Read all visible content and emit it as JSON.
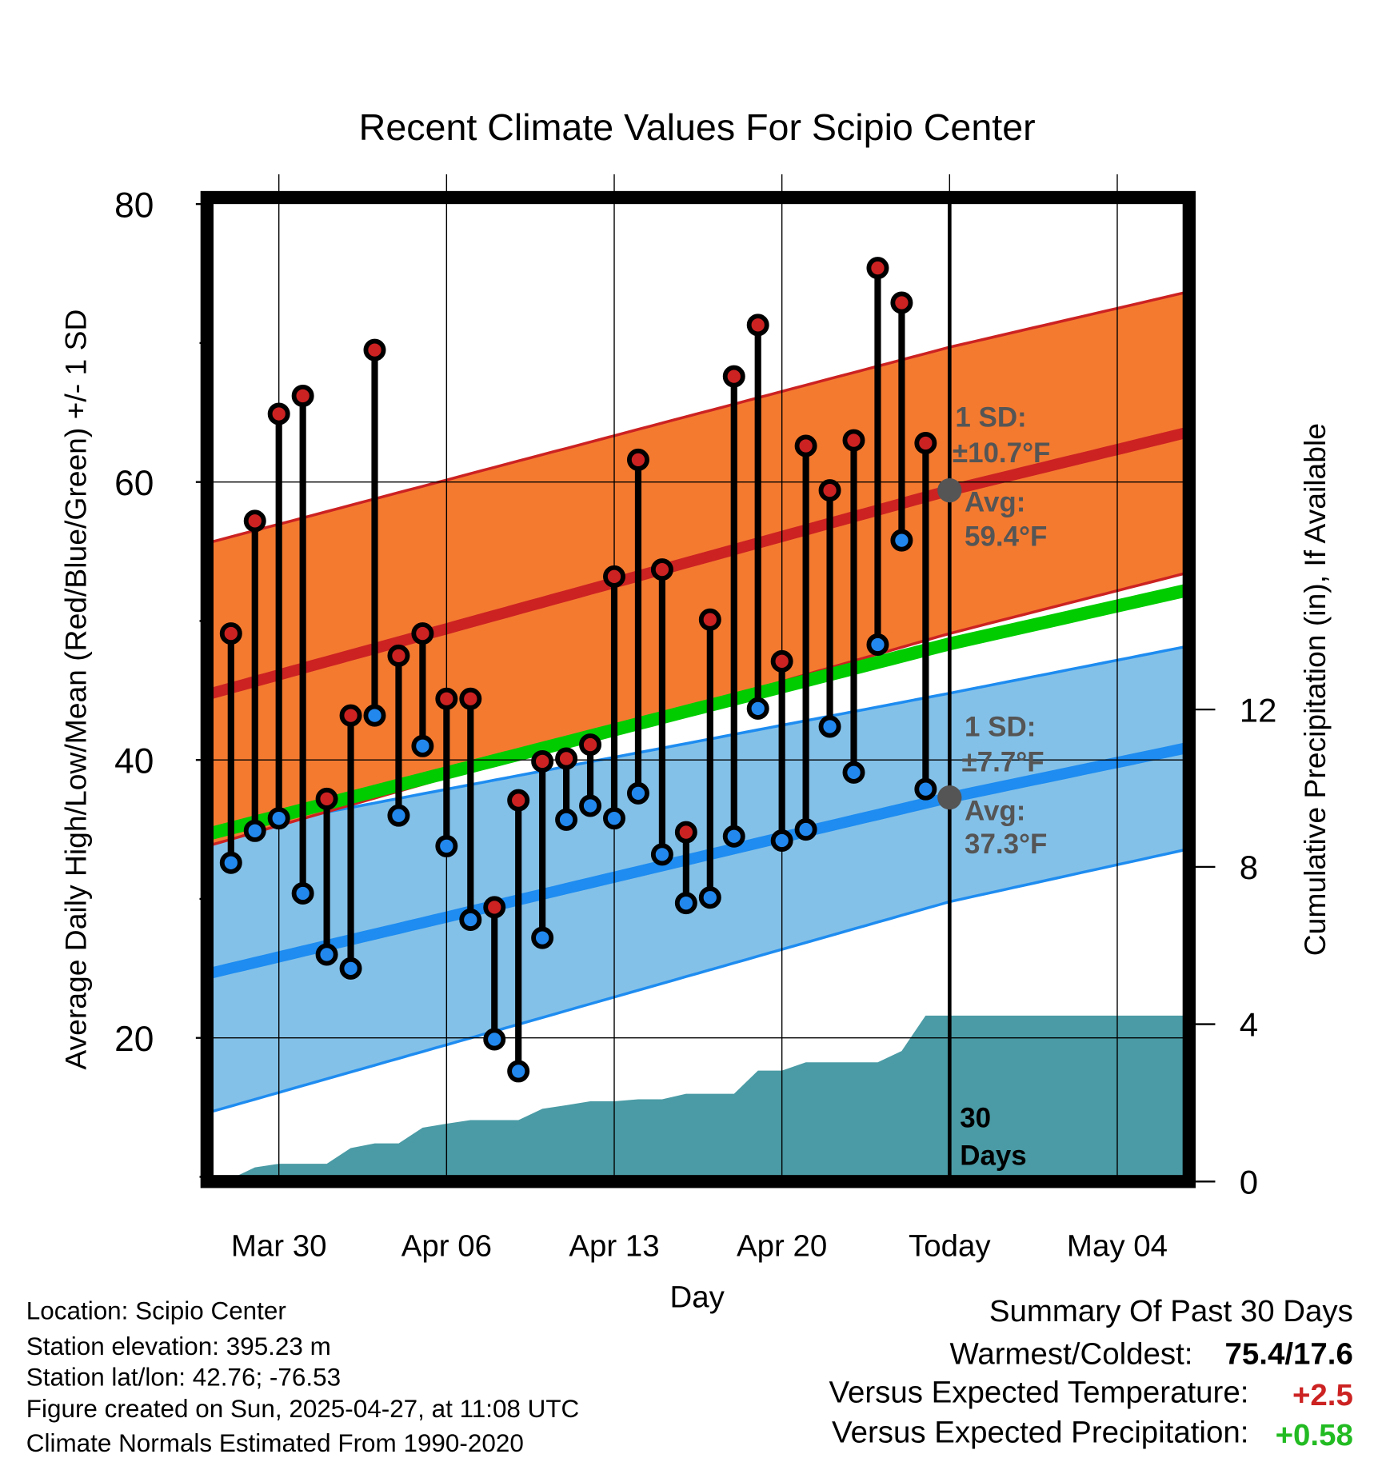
{
  "chart_data": {
    "type": "line",
    "title": "Recent Climate Values For Scipio Center",
    "xlabel": "Day",
    "ylabel": "Average Daily High/Low/Mean (Red/Blue/Green) +/- 1 SD",
    "y2label": "Cumulative Precipitation (in), If Available",
    "ylim": [
      10,
      80
    ],
    "y2lim": [
      0,
      24.85
    ],
    "yticks": [
      "80",
      "60",
      "40",
      "20"
    ],
    "yticks_values": [
      80,
      60,
      40,
      20
    ],
    "y2ticks": [
      "12",
      "8",
      "4",
      "0"
    ],
    "y2ticks_values": [
      12,
      8,
      4,
      0
    ],
    "x_start": "Mar 27",
    "x_range_days": [
      0,
      41
    ],
    "xticks": [
      "Mar 30",
      "Apr 06",
      "Apr 13",
      "Apr 20",
      "Today",
      "May 04"
    ],
    "xticks_days": [
      3,
      10,
      17,
      24,
      31,
      38
    ],
    "today_day": 31,
    "days": [
      "Mar 28",
      "Mar 29",
      "Mar 30",
      "Mar 31",
      "Apr 01",
      "Apr 02",
      "Apr 03",
      "Apr 04",
      "Apr 05",
      "Apr 06",
      "Apr 07",
      "Apr 08",
      "Apr 09",
      "Apr 10",
      "Apr 11",
      "Apr 12",
      "Apr 13",
      "Apr 14",
      "Apr 15",
      "Apr 16",
      "Apr 17",
      "Apr 18",
      "Apr 19",
      "Apr 20",
      "Apr 21",
      "Apr 22",
      "Apr 23",
      "Apr 24",
      "Apr 25",
      "Apr 26"
    ],
    "series": [
      {
        "name": "Daily High",
        "color": "#cc2222",
        "values": [
          49.1,
          57.2,
          64.9,
          66.2,
          37.2,
          43.2,
          69.5,
          47.5,
          49.1,
          44.4,
          44.4,
          29.4,
          37.1,
          39.9,
          40.1,
          41.1,
          53.2,
          61.6,
          53.7,
          34.8,
          50.1,
          67.6,
          71.3,
          47.1,
          62.6,
          59.4,
          63.0,
          75.4,
          72.9,
          62.8
        ]
      },
      {
        "name": "Daily Low",
        "color": "#2288ee",
        "values": [
          32.6,
          34.9,
          35.8,
          30.4,
          26.0,
          25.0,
          43.2,
          36.0,
          41.0,
          33.8,
          28.5,
          19.9,
          17.6,
          27.2,
          35.7,
          36.7,
          35.8,
          37.6,
          33.2,
          29.7,
          30.1,
          34.5,
          43.7,
          34.2,
          35.0,
          42.4,
          39.1,
          48.3,
          55.8,
          37.9
        ]
      }
    ],
    "normals": {
      "anchor_days": [
        0,
        31,
        41
      ],
      "high_mean": [
        44.7,
        59.4,
        63.6
      ],
      "high_sd": [
        10.9,
        10.3,
        10.1
      ],
      "low_mean": [
        24.6,
        37.3,
        40.9
      ],
      "low_sd": [
        10.0,
        7.5,
        7.3
      ]
    },
    "precip_cumulative": {
      "days": [
        0,
        1,
        2,
        3,
        4,
        5,
        6,
        7,
        8,
        9,
        10,
        11,
        12,
        13,
        14,
        15,
        16,
        17,
        18,
        19,
        20,
        21,
        22,
        23,
        24,
        25,
        26,
        27,
        28,
        29,
        30,
        41
      ],
      "values": [
        0,
        0.07,
        0.36,
        0.45,
        0.45,
        0.45,
        0.85,
        0.97,
        0.97,
        1.37,
        1.47,
        1.56,
        1.56,
        1.56,
        1.85,
        1.94,
        2.04,
        2.04,
        2.09,
        2.09,
        2.23,
        2.23,
        2.23,
        2.82,
        2.82,
        3.03,
        3.03,
        3.03,
        3.03,
        3.32,
        4.22,
        4.22
      ]
    },
    "colors": {
      "high_band": "#f47a30",
      "high_line": "#cc2222",
      "low_band": "#84c1e8",
      "low_line": "#1e8cf0",
      "mean_line": "#00cc00",
      "precip": "#4a9ba5"
    },
    "annotations": {
      "high_sd_label": "1 SD:",
      "high_sd_value": "±10.7°F",
      "high_avg_label": "Avg:",
      "high_avg_value": "59.4°F",
      "low_sd_label": "1 SD:",
      "low_sd_value": "±7.7°F",
      "low_avg_label": "Avg:",
      "low_avg_value": "37.3°F",
      "window_count": "30",
      "window_unit": "Days"
    },
    "grid": true
  },
  "info": {
    "location": "Location: Scipio Center",
    "elevation": "Station elevation: 395.23 m",
    "latlon": "Station lat/lon: 42.76; -76.53",
    "created": "Figure created on Sun, 2025-04-27, at 11:08 UTC",
    "normals": "Climate Normals Estimated From 1990-2020"
  },
  "summary": {
    "title": "Summary Of Past 30 Days",
    "warm_cold_label": "Warmest/Coldest:",
    "warm_cold_value": "75.4/17.6",
    "temp_label": "Versus Expected Temperature:",
    "temp_value": "+2.5",
    "temp_color": "#cc2222",
    "precip_label": "Versus Expected Precipitation:",
    "precip_value": "+0.58",
    "precip_color": "#22bb22"
  }
}
